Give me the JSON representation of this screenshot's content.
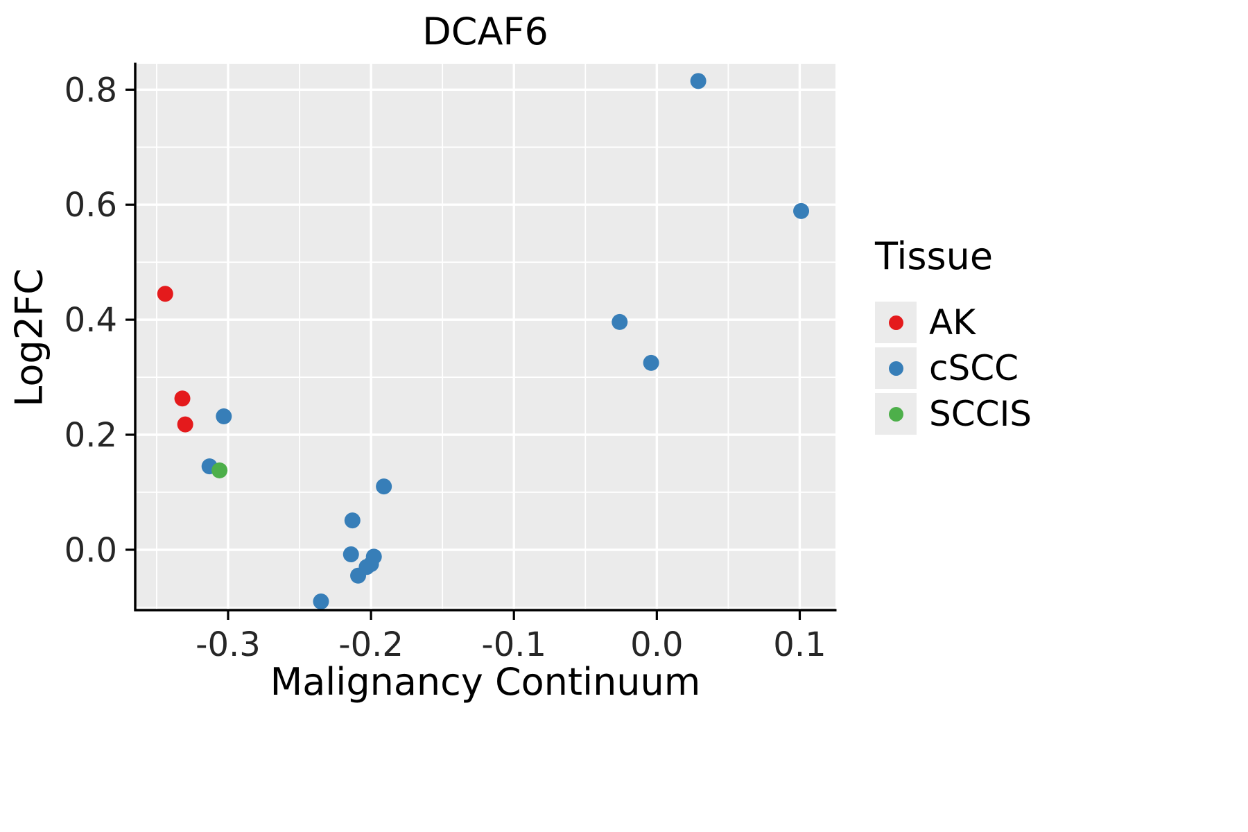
{
  "title": "DCAF6",
  "legend": {
    "title": "Tissue",
    "entries": [
      {
        "label": "AK",
        "color": "#E41A1C"
      },
      {
        "label": "cSCC",
        "color": "#377EB8"
      },
      {
        "label": "SCCIS",
        "color": "#4DAF4A"
      }
    ]
  },
  "colors": {
    "panel_bg": "#EBEBEB",
    "grid_major": "#FFFFFF",
    "grid_minor": "#FFFFFF",
    "axis_line": "#000000",
    "tick_label": "#262626"
  },
  "chart_data": {
    "type": "scatter",
    "title": "DCAF6",
    "xlabel": "Malignancy Continuum",
    "ylabel": "Log2FC",
    "xlim": [
      -0.365,
      0.125
    ],
    "ylim": [
      -0.105,
      0.845
    ],
    "x_ticks": [
      -0.3,
      -0.2,
      -0.1,
      0.0,
      0.1
    ],
    "x_tick_labels": [
      "-0.3",
      "-0.2",
      "-0.1",
      "0.0",
      "0.1"
    ],
    "y_ticks": [
      0.0,
      0.2,
      0.4,
      0.6,
      0.8
    ],
    "y_tick_labels": [
      "0.0",
      "0.2",
      "0.4",
      "0.6",
      "0.8"
    ],
    "x_minor_ticks": [
      -0.35,
      -0.25,
      -0.15,
      -0.05,
      0.05
    ],
    "y_minor_ticks": [
      -0.1,
      0.1,
      0.3,
      0.5,
      0.7
    ],
    "grid": true,
    "legend_position": "right",
    "series": [
      {
        "name": "AK",
        "color": "#E41A1C",
        "points": [
          [
            -0.344,
            0.445
          ],
          [
            -0.332,
            0.263
          ],
          [
            -0.33,
            0.218
          ]
        ]
      },
      {
        "name": "cSCC",
        "color": "#377EB8",
        "points": [
          [
            -0.303,
            0.232
          ],
          [
            -0.313,
            0.145
          ],
          [
            -0.235,
            -0.09
          ],
          [
            -0.213,
            0.051
          ],
          [
            -0.214,
            -0.008
          ],
          [
            -0.209,
            -0.045
          ],
          [
            -0.203,
            -0.03
          ],
          [
            -0.2,
            -0.025
          ],
          [
            -0.198,
            -0.012
          ],
          [
            -0.191,
            0.11
          ],
          [
            -0.026,
            0.396
          ],
          [
            -0.004,
            0.325
          ],
          [
            0.029,
            0.815
          ],
          [
            0.101,
            0.589
          ]
        ]
      },
      {
        "name": "SCCIS",
        "color": "#4DAF4A",
        "points": [
          [
            -0.306,
            0.138
          ]
        ]
      }
    ]
  }
}
